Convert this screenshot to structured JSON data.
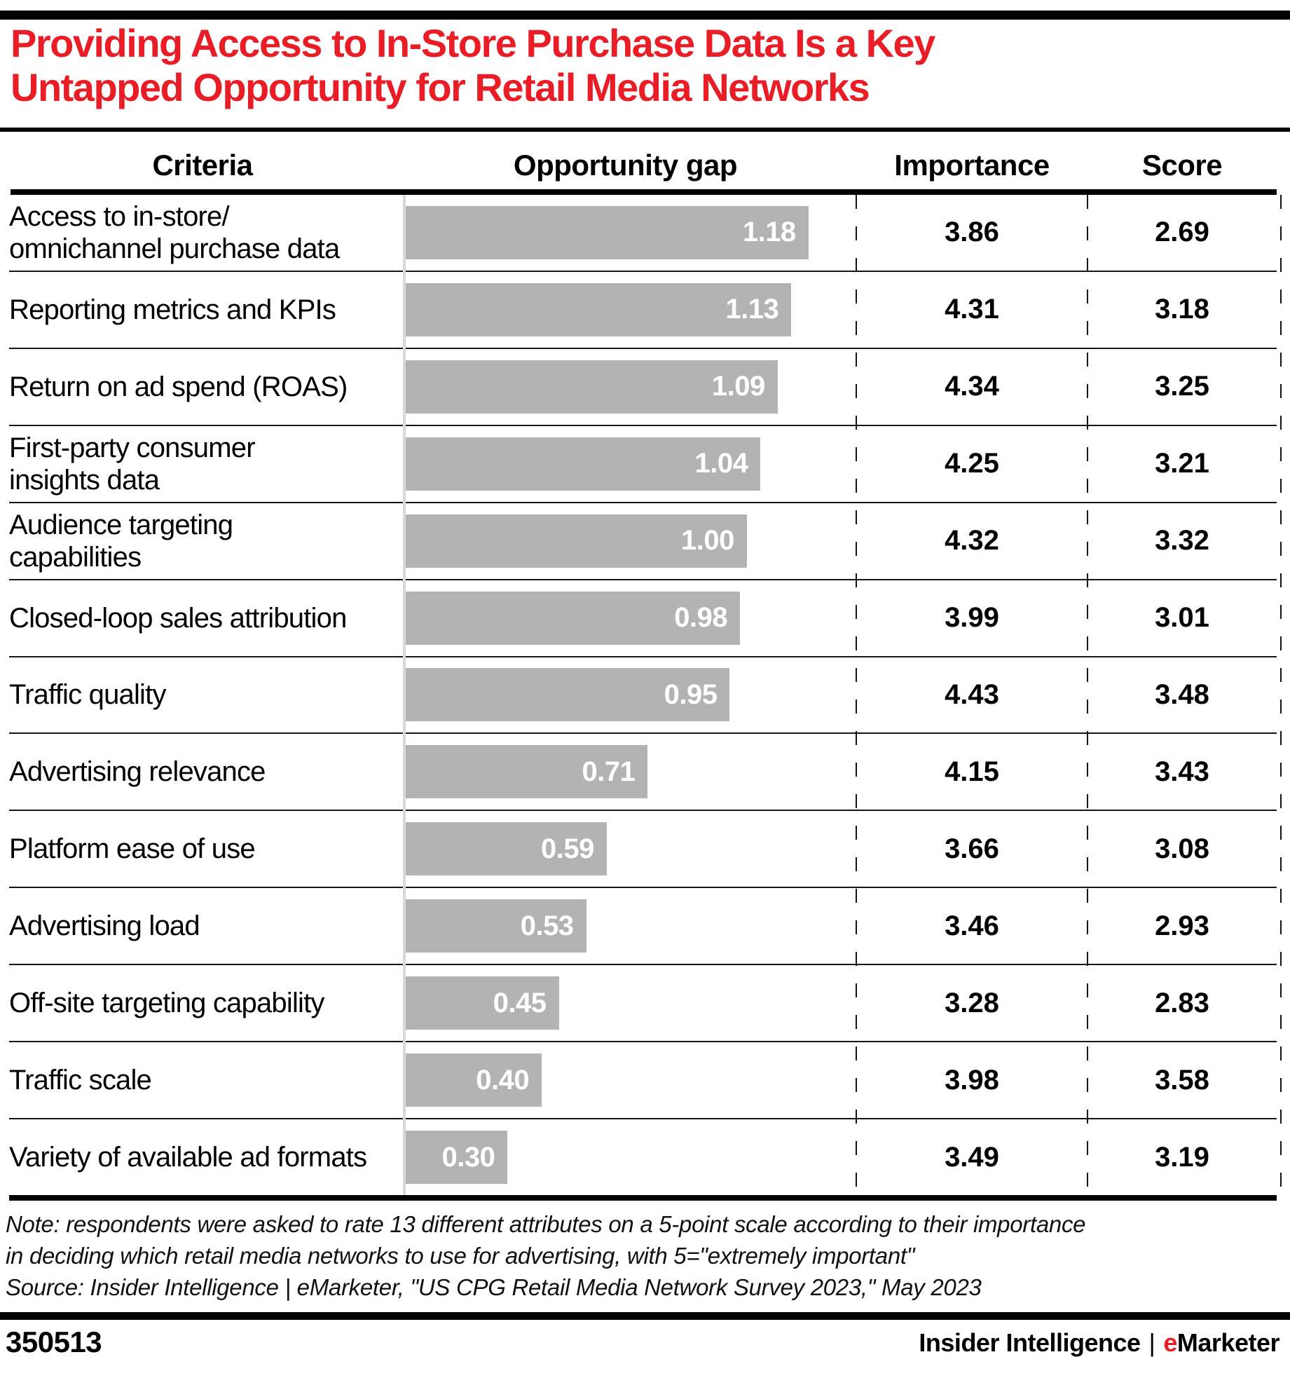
{
  "page": {
    "title_line1": "Providing Access to In-Store Purchase Data Is a Key",
    "title_line2": "Untapped Opportunity for Retail Media Networks",
    "title_color": "#e91d25"
  },
  "table": {
    "headers": {
      "criteria": "Criteria",
      "gap": "Opportunity gap",
      "importance": "Importance",
      "score": "Score"
    }
  },
  "rows": [
    {
      "label": "Access to in-store/\nomnichannel purchase data",
      "gap": "1.18",
      "importance": "3.86",
      "score": "2.69"
    },
    {
      "label": "Reporting metrics and KPIs",
      "gap": "1.13",
      "importance": "4.31",
      "score": "3.18"
    },
    {
      "label": "Return on ad spend (ROAS)",
      "gap": "1.09",
      "importance": "4.34",
      "score": "3.25"
    },
    {
      "label": "First-party consumer\ninsights data",
      "gap": "1.04",
      "importance": "4.25",
      "score": "3.21"
    },
    {
      "label": "Audience targeting\ncapabilities",
      "gap": "1.00",
      "importance": "4.32",
      "score": "3.32"
    },
    {
      "label": "Closed-loop sales attribution",
      "gap": "0.98",
      "importance": "3.99",
      "score": "3.01"
    },
    {
      "label": "Traffic quality",
      "gap": "0.95",
      "importance": "4.43",
      "score": "3.48"
    },
    {
      "label": "Advertising relevance",
      "gap": "0.71",
      "importance": "4.15",
      "score": "3.43"
    },
    {
      "label": "Platform ease of use",
      "gap": "0.59",
      "importance": "3.66",
      "score": "3.08"
    },
    {
      "label": "Advertising load",
      "gap": "0.53",
      "importance": "3.46",
      "score": "2.93"
    },
    {
      "label": "Off-site targeting capability",
      "gap": "0.45",
      "importance": "3.28",
      "score": "2.83"
    },
    {
      "label": "Traffic scale",
      "gap": "0.40",
      "importance": "3.98",
      "score": "3.58"
    },
    {
      "label": "Variety of available ad formats",
      "gap": "0.30",
      "importance": "3.49",
      "score": "3.19"
    }
  ],
  "chart_data": {
    "type": "bar",
    "orientation": "horizontal",
    "title": "Providing Access to In-Store Purchase Data Is a Key Untapped Opportunity for Retail Media Networks",
    "categories": [
      "Access to in-store/omnichannel purchase data",
      "Reporting metrics and KPIs",
      "Return on ad spend (ROAS)",
      "First-party consumer insights data",
      "Audience targeting capabilities",
      "Closed-loop sales attribution",
      "Traffic quality",
      "Advertising relevance",
      "Platform ease of use",
      "Advertising load",
      "Off-site targeting capability",
      "Traffic scale",
      "Variety of available ad formats"
    ],
    "series": [
      {
        "name": "Opportunity gap",
        "values": [
          1.18,
          1.13,
          1.09,
          1.04,
          1.0,
          0.98,
          0.95,
          0.71,
          0.59,
          0.53,
          0.45,
          0.4,
          0.3
        ]
      },
      {
        "name": "Importance",
        "values": [
          3.86,
          4.31,
          4.34,
          4.25,
          4.32,
          3.99,
          4.43,
          4.15,
          3.66,
          3.46,
          3.28,
          3.98,
          3.49
        ]
      },
      {
        "name": "Score",
        "values": [
          2.69,
          3.18,
          3.25,
          3.21,
          3.32,
          3.01,
          3.48,
          3.43,
          3.08,
          2.93,
          2.83,
          3.58,
          3.19
        ]
      }
    ],
    "xlabel": "",
    "ylabel": "",
    "x_max": 1.32,
    "bar_color": "#b3b3b3",
    "bar_value_label_color": "#ffffff",
    "legend": "none",
    "grid": "horizontal row separators, dashed vertical column dividers, light gray bar baseline"
  },
  "note": {
    "line1": "Note: respondents were asked to rate 13 different attributes on a 5-point scale according to their importance",
    "line2": "in deciding which retail media networks to use for advertising, with 5=\"extremely important\"",
    "source": "Source: Insider Intelligence | eMarketer, \"US CPG Retail Media Network Survey 2023,\" May 2023"
  },
  "footer": {
    "chart_id": "350513",
    "brand_primary": "Insider Intelligence",
    "brand_separator": "|",
    "brand_e": "e",
    "brand_rest": "Marketer",
    "brand_e_color": "#ed1c24"
  }
}
